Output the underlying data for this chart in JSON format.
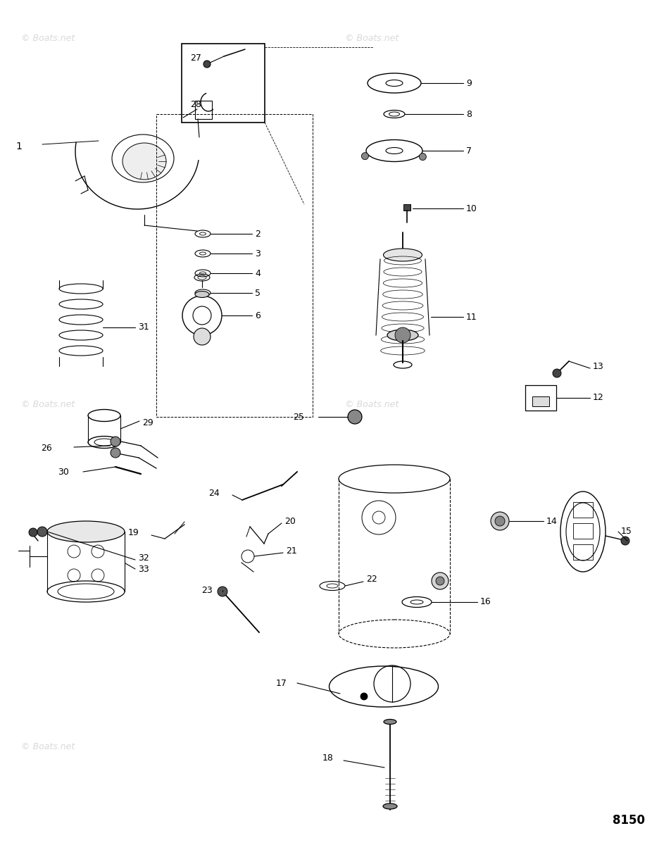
{
  "background_color": "#ffffff",
  "watermark_text": "© Boats.net",
  "watermark_color": "#c0c0c0",
  "part_number_label": "8150",
  "fig_width": 9.54,
  "fig_height": 12.0,
  "dpi": 100
}
